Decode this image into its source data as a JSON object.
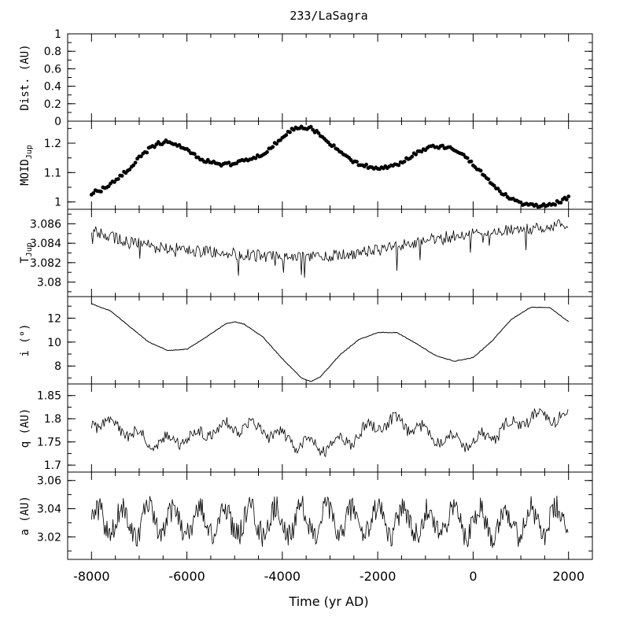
{
  "chart_data": {
    "type": "line",
    "title": "233/LaSagra",
    "xlabel": "Time (yr AD)",
    "xlim": [
      -8500,
      2500
    ],
    "xticks": [
      -8000,
      -6000,
      -4000,
      -2000,
      0,
      2000
    ],
    "xtick_labels": [
      "-8000",
      "-6000",
      "-4000",
      "-2000",
      "0",
      "2000"
    ],
    "colors": {
      "line": "#000000",
      "axes": "#000000",
      "background": "#ffffff"
    },
    "panels": [
      {
        "key": "dist",
        "ylabel": "Dist. (AU)",
        "ylim": [
          0,
          1
        ],
        "yticks": [
          0,
          0.2,
          0.4,
          0.6,
          0.8,
          1
        ],
        "ytick_labels": [
          "0",
          "0.2",
          "0.4",
          "0.6",
          "0.8",
          "1"
        ],
        "series": []
      },
      {
        "key": "moid",
        "ylabel_main": "MOID",
        "ylabel_sub": "Jup",
        "ylim": [
          0.975,
          1.275
        ],
        "yticks": [
          1,
          1.1,
          1.2
        ],
        "ytick_labels": [
          "1",
          "1.1",
          "1.2"
        ],
        "series": [
          {
            "style": "scatter",
            "x": [
              -8000,
              -7800,
              -7600,
              -7400,
              -7200,
              -7000,
              -6800,
              -6600,
              -6400,
              -6200,
              -6000,
              -5800,
              -5600,
              -5400,
              -5200,
              -5000,
              -4800,
              -4600,
              -4400,
              -4200,
              -4000,
              -3800,
              -3600,
              -3400,
              -3200,
              -3000,
              -2800,
              -2600,
              -2400,
              -2200,
              -2000,
              -1800,
              -1600,
              -1400,
              -1200,
              -1000,
              -800,
              -600,
              -400,
              -200,
              0,
              200,
              400,
              600,
              800,
              1000,
              1200,
              1400,
              1600,
              1800,
              2000
            ],
            "values": [
              1.03,
              1.04,
              1.06,
              1.085,
              1.115,
              1.15,
              1.18,
              1.2,
              1.205,
              1.195,
              1.175,
              1.155,
              1.14,
              1.13,
              1.127,
              1.13,
              1.14,
              1.15,
              1.165,
              1.19,
              1.22,
              1.245,
              1.255,
              1.25,
              1.23,
              1.2,
              1.17,
              1.145,
              1.13,
              1.12,
              1.118,
              1.117,
              1.125,
              1.145,
              1.165,
              1.18,
              1.188,
              1.188,
              1.18,
              1.16,
              1.13,
              1.095,
              1.06,
              1.03,
              1.01,
              0.995,
              0.988,
              0.985,
              0.99,
              1.0,
              1.015
            ]
          }
        ]
      },
      {
        "key": "tjup",
        "ylabel_main": "T",
        "ylabel_sub": "Jup",
        "ylim": [
          3.0785,
          3.0875
        ],
        "yticks": [
          3.08,
          3.082,
          3.084,
          3.086
        ],
        "ytick_labels": [
          "3.08",
          "3.082",
          "3.084",
          "3.086"
        ],
        "series": [
          {
            "style": "noisy-line",
            "x": [
              -8000,
              -7500,
              -7000,
              -6500,
              -6000,
              -5500,
              -5000,
              -4500,
              -4000,
              -3500,
              -3000,
              -2500,
              -2000,
              -1500,
              -1000,
              -500,
              0,
              500,
              1000,
              1500,
              2000
            ],
            "values": [
              3.0853,
              3.0845,
              3.084,
              3.0836,
              3.0833,
              3.0831,
              3.0829,
              3.0827,
              3.0826,
              3.0826,
              3.0827,
              3.0829,
              3.0833,
              3.0838,
              3.0843,
              3.0847,
              3.085,
              3.0852,
              3.0854,
              3.0857,
              3.086
            ]
          }
        ]
      },
      {
        "key": "incl",
        "ylabel": "i (°)",
        "ylim": [
          6.5,
          13.8
        ],
        "yticks": [
          8,
          10,
          12
        ],
        "ytick_labels": [
          "8",
          "10",
          "12"
        ],
        "series": [
          {
            "style": "line",
            "x": [
              -8000,
              -7600,
              -7200,
              -6800,
              -6400,
              -6000,
              -5600,
              -5200,
              -5000,
              -4800,
              -4400,
              -4000,
              -3600,
              -3400,
              -3200,
              -2800,
              -2400,
              -2000,
              -1600,
              -1200,
              -800,
              -400,
              0,
              400,
              800,
              1200,
              1600,
              2000
            ],
            "values": [
              13.2,
              12.6,
              11.3,
              10.0,
              9.3,
              9.4,
              10.4,
              11.5,
              11.7,
              11.5,
              10.4,
              8.6,
              7.0,
              6.7,
              7.1,
              8.9,
              10.2,
              10.8,
              10.8,
              9.9,
              8.9,
              8.4,
              8.7,
              10.1,
              11.9,
              12.9,
              12.9,
              11.7
            ]
          }
        ]
      },
      {
        "key": "q",
        "ylabel": "q (AU)",
        "ylim": [
          1.685,
          1.875
        ],
        "yticks": [
          1.7,
          1.75,
          1.8,
          1.85
        ],
        "ytick_labels": [
          "1.7",
          "1.75",
          "1.8",
          "1.85"
        ],
        "series": [
          {
            "style": "noisy-line",
            "x": [
              -8000,
              -7500,
              -7000,
              -6500,
              -6000,
              -5500,
              -5000,
              -4500,
              -4000,
              -3500,
              -3000,
              -2500,
              -2000,
              -1500,
              -1000,
              -500,
              0,
              500,
              1000,
              1500,
              2000
            ],
            "values": [
              1.795,
              1.785,
              1.76,
              1.75,
              1.758,
              1.775,
              1.785,
              1.78,
              1.76,
              1.742,
              1.74,
              1.76,
              1.79,
              1.79,
              1.77,
              1.755,
              1.75,
              1.77,
              1.795,
              1.805,
              1.8
            ]
          }
        ]
      },
      {
        "key": "a",
        "ylabel": "a (AU)",
        "ylim": [
          3.004,
          3.066
        ],
        "yticks": [
          3.02,
          3.04,
          3.06
        ],
        "ytick_labels": [
          "3.02",
          "3.04",
          "3.06"
        ],
        "series": [
          {
            "style": "noisy-line",
            "x": [
              -8000,
              -6000,
              -4000,
              -2000,
              0,
              2000
            ],
            "values": [
              3.031,
              3.031,
              3.031,
              3.031,
              3.031,
              3.031
            ]
          }
        ]
      }
    ]
  }
}
